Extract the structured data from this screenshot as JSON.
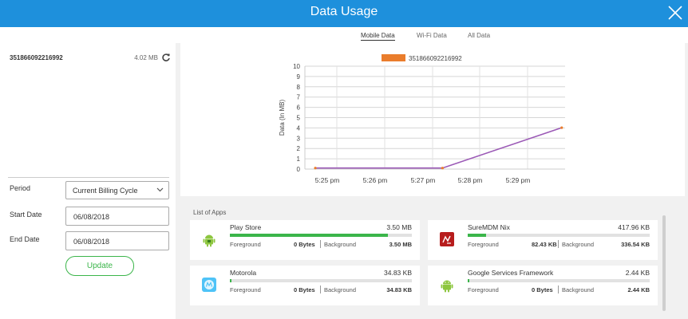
{
  "window": {
    "title": "Data Usage"
  },
  "device": {
    "id": "351866092216992",
    "usage": "4.02 MB"
  },
  "form": {
    "period_label": "Period",
    "period_value": "Current Billing Cycle",
    "start_label": "Start Date",
    "start_value": "06/08/2018",
    "end_label": "End Date",
    "end_value": "06/08/2018",
    "update_label": "Update"
  },
  "tabs": [
    {
      "label": "Mobile Data",
      "active": true
    },
    {
      "label": "Wi-Fi Data",
      "active": false
    },
    {
      "label": "All Data",
      "active": false
    }
  ],
  "chart_data": {
    "type": "line",
    "title": "",
    "xlabel": "",
    "ylabel": "Data (In MB)",
    "ylim": [
      0,
      10
    ],
    "yticks": [
      "0",
      "1",
      "2",
      "3",
      "4",
      "5",
      "6",
      "7",
      "8",
      "9",
      "10"
    ],
    "xticks": [
      "5:25 pm",
      "5:26 pm",
      "5:27 pm",
      "5:28 pm",
      "5:29 pm"
    ],
    "grid": true,
    "legend": "top",
    "series": [
      {
        "name": "351866092216992",
        "legend_color": "#ea7d2c",
        "line_color": "#9b59b6",
        "points": [
          {
            "x": "5:24:45 pm",
            "y": 0.1
          },
          {
            "x": "5:27:25 pm",
            "y": 0.1
          },
          {
            "x": "5:29:55 pm",
            "y": 4.02
          }
        ]
      }
    ]
  },
  "apps": {
    "section_label": "List of Apps",
    "foreground_label": "Foreground",
    "background_label": "Background",
    "items": [
      {
        "name": "Play Store",
        "total": "3.50 MB",
        "foreground": "0 Bytes",
        "background": "3.50 MB",
        "usage_fraction": 0.87,
        "icon": "android-icon"
      },
      {
        "name": "SureMDM Nix",
        "total": "417.96 KB",
        "foreground": "82.43 KB",
        "background": "336.54 KB",
        "usage_fraction": 0.1,
        "icon": "suremdm-nix-icon"
      },
      {
        "name": "Motorola",
        "total": "34.83 KB",
        "foreground": "0 Bytes",
        "background": "34.83 KB",
        "usage_fraction": 0.01,
        "icon": "motorola-icon"
      },
      {
        "name": "Google Services Framework",
        "total": "2.44 KB",
        "foreground": "0 Bytes",
        "background": "2.44 KB",
        "usage_fraction": 0.005,
        "icon": "android-icon"
      }
    ]
  },
  "colors": {
    "title_bar": "#1e90dc",
    "accent_green": "#3bb54a",
    "line": "#9b59b6",
    "legend_swatch": "#ea7d2c"
  },
  "icons": {
    "close": "close-icon",
    "refresh": "refresh-icon",
    "dropdown": "chevron-down-icon"
  }
}
